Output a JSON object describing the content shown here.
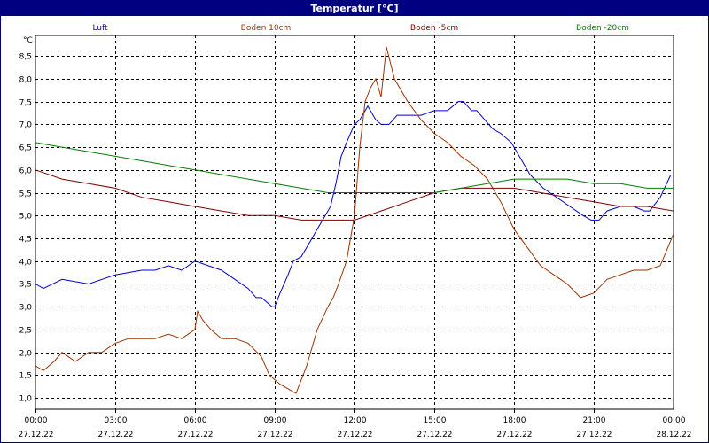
{
  "window": {
    "title": "Temperatur [°C]"
  },
  "chart_data": {
    "type": "line",
    "title": "Temperatur [°C]",
    "ylabel": "°C",
    "xlabel": "",
    "xlim": [
      0,
      24
    ],
    "ylim": [
      0.75,
      8.95
    ],
    "grid": true,
    "legend_position": "top",
    "y_ticks": [
      "1,0",
      "1,5",
      "2,0",
      "2,5",
      "3,0",
      "3,5",
      "4,0",
      "4,5",
      "5,0",
      "5,5",
      "6,0",
      "6,5",
      "7,0",
      "7,5",
      "8,0",
      "8,5"
    ],
    "x_ticks": [
      {
        "time": "00:00",
        "date": "27.12.22"
      },
      {
        "time": "03:00",
        "date": "27.12.22"
      },
      {
        "time": "06:00",
        "date": "27.12.22"
      },
      {
        "time": "09:00",
        "date": "27.12.22"
      },
      {
        "time": "12:00",
        "date": "27.12.22"
      },
      {
        "time": "15:00",
        "date": "27.12.22"
      },
      {
        "time": "18:00",
        "date": "27.12.22"
      },
      {
        "time": "21:00",
        "date": "27.12.22"
      },
      {
        "time": "00:00",
        "date": "28.12.22"
      }
    ],
    "series": [
      {
        "name": "Luft",
        "color": "#0000cc",
        "x": [
          0,
          0.3,
          1,
          2,
          3,
          4,
          4.5,
          5,
          5.5,
          6,
          6.5,
          7,
          7.5,
          8,
          8.3,
          8.5,
          8.9,
          9,
          9.2,
          9.5,
          9.7,
          10,
          10.3,
          10.6,
          10.9,
          11.1,
          11.3,
          11.5,
          11.7,
          12,
          12.2,
          12.5,
          12.8,
          13,
          13.3,
          13.6,
          14,
          14.5,
          15,
          15.5,
          15.9,
          16.1,
          16.4,
          16.6,
          16.9,
          17.2,
          17.5,
          17.9,
          18.2,
          18.6,
          19.1,
          19.6,
          20.1,
          20.6,
          20.9,
          21.2,
          21.5,
          22,
          22.5,
          22.9,
          23.1,
          23.5,
          23.9
        ],
        "y": [
          3.5,
          3.4,
          3.6,
          3.5,
          3.7,
          3.8,
          3.8,
          3.9,
          3.8,
          4.0,
          3.9,
          3.8,
          3.6,
          3.4,
          3.2,
          3.2,
          3.0,
          3.0,
          3.3,
          3.7,
          4.0,
          4.1,
          4.4,
          4.7,
          5.0,
          5.2,
          5.7,
          6.3,
          6.6,
          7.0,
          7.1,
          7.4,
          7.1,
          7.0,
          7.0,
          7.2,
          7.2,
          7.2,
          7.3,
          7.3,
          7.5,
          7.5,
          7.3,
          7.3,
          7.1,
          6.9,
          6.8,
          6.6,
          6.3,
          5.9,
          5.6,
          5.4,
          5.2,
          5.0,
          4.9,
          4.9,
          5.1,
          5.2,
          5.2,
          5.1,
          5.1,
          5.4,
          5.9
        ]
      },
      {
        "name": "Boden 10cm",
        "color": "#993300",
        "x": [
          0,
          0.3,
          0.7,
          1,
          1.5,
          2,
          2.5,
          3,
          3.5,
          4,
          4.5,
          5,
          5.5,
          6,
          6.1,
          6.3,
          6.6,
          7,
          7.5,
          8,
          8.5,
          8.8,
          9,
          9.2,
          9.5,
          9.8,
          10.2,
          10.6,
          11,
          11.2,
          11.4,
          11.7,
          12,
          12.2,
          12.4,
          12.6,
          12.8,
          13,
          13.2,
          13.5,
          14,
          14.5,
          15,
          15.5,
          16,
          16.5,
          17,
          17.5,
          18,
          18.5,
          19,
          19.5,
          20,
          20.5,
          21,
          21.5,
          22,
          22.5,
          23,
          23.5,
          24
        ],
        "y": [
          1.7,
          1.6,
          1.8,
          2.0,
          1.8,
          2.0,
          2.0,
          2.2,
          2.3,
          2.3,
          2.3,
          2.4,
          2.3,
          2.5,
          2.9,
          2.7,
          2.5,
          2.3,
          2.3,
          2.2,
          1.9,
          1.5,
          1.4,
          1.3,
          1.2,
          1.1,
          1.7,
          2.5,
          3.0,
          3.2,
          3.5,
          4.0,
          5.0,
          6.5,
          7.5,
          7.8,
          8.0,
          7.6,
          8.7,
          8.0,
          7.5,
          7.1,
          6.8,
          6.6,
          6.3,
          6.1,
          5.8,
          5.3,
          4.7,
          4.3,
          3.9,
          3.7,
          3.5,
          3.2,
          3.3,
          3.6,
          3.7,
          3.8,
          3.8,
          3.9,
          4.6
        ]
      },
      {
        "name": "Boden -5cm",
        "color": "#800000",
        "x": [
          0,
          1,
          2,
          3,
          4,
          5,
          6,
          7,
          8,
          9,
          10,
          11,
          12,
          13,
          14,
          15,
          16,
          17,
          18,
          19,
          20,
          21,
          22,
          23,
          24
        ],
        "y": [
          6.0,
          5.8,
          5.7,
          5.6,
          5.4,
          5.3,
          5.2,
          5.1,
          5.0,
          5.0,
          4.9,
          4.9,
          4.9,
          5.1,
          5.3,
          5.5,
          5.6,
          5.6,
          5.6,
          5.5,
          5.4,
          5.3,
          5.2,
          5.2,
          5.1
        ]
      },
      {
        "name": "Boden -20cm",
        "color": "#008000",
        "x": [
          0,
          1,
          2,
          3,
          4,
          5,
          6,
          7,
          8,
          9,
          10,
          11,
          12,
          13,
          14,
          15,
          16,
          17,
          18,
          19,
          20,
          21,
          22,
          23,
          24
        ],
        "y": [
          6.6,
          6.5,
          6.4,
          6.3,
          6.2,
          6.1,
          6.0,
          5.9,
          5.8,
          5.7,
          5.6,
          5.5,
          5.5,
          5.5,
          5.5,
          5.5,
          5.6,
          5.7,
          5.8,
          5.8,
          5.8,
          5.7,
          5.7,
          5.6,
          5.6
        ]
      }
    ]
  }
}
